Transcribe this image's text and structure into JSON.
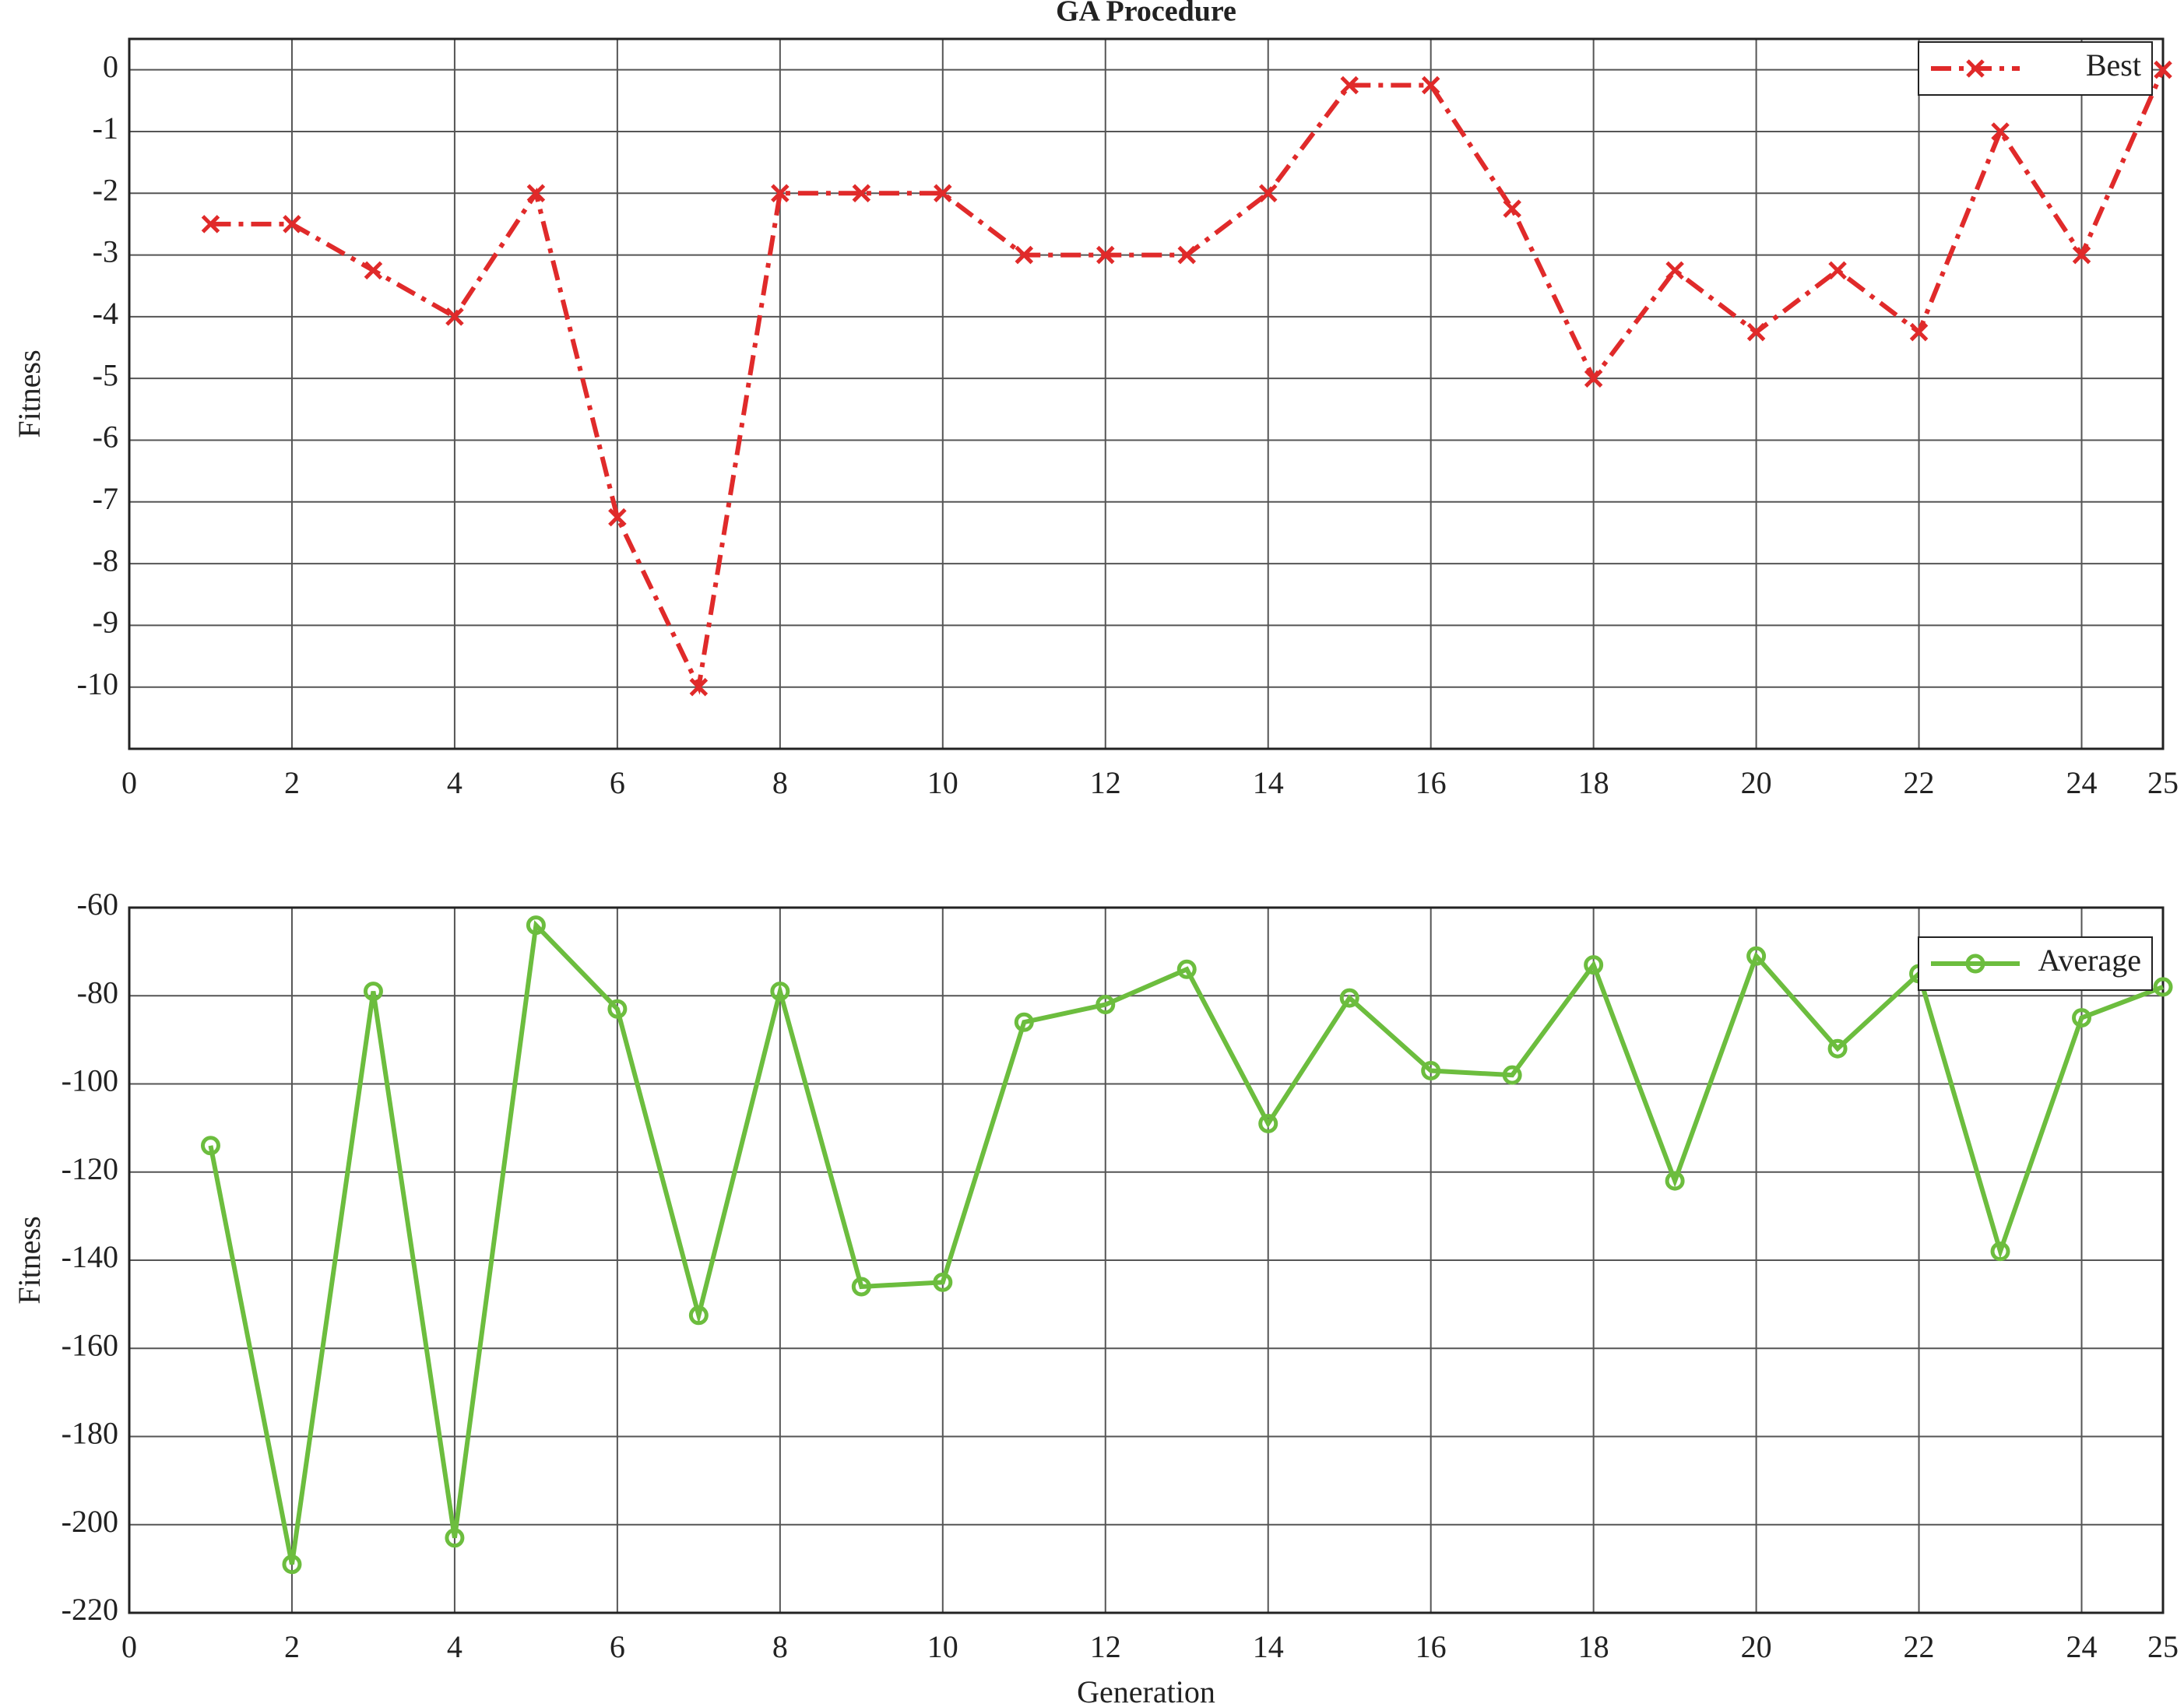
{
  "chart_data": [
    {
      "type": "line",
      "title": "GA Procedure",
      "ylabel": "Fitness",
      "x": [
        1,
        2,
        3,
        4,
        5,
        6,
        7,
        8,
        9,
        10,
        11,
        12,
        13,
        14,
        15,
        16,
        17,
        18,
        19,
        20,
        21,
        22,
        23,
        24,
        25
      ],
      "series": [
        {
          "name": "Best",
          "color": "#e02a2a",
          "linestyle": "dashdot",
          "marker": "x",
          "values": [
            -2.5,
            -2.5,
            -3.25,
            -4,
            -2,
            -7.25,
            -10,
            -2,
            -2,
            -2,
            -3,
            -3,
            -3,
            -2,
            -0.25,
            -0.25,
            -2.25,
            -5,
            -3.25,
            -4.25,
            -3.25,
            -4.25,
            -1,
            -3,
            0
          ]
        }
      ],
      "xlim": [
        0,
        25
      ],
      "xticks": [
        0,
        2,
        4,
        6,
        8,
        10,
        12,
        14,
        16,
        18,
        20,
        22,
        24,
        25
      ],
      "ylim": [
        -11,
        0.5
      ],
      "yticks": [
        -10,
        -9,
        -8,
        -7,
        -6,
        -5,
        -4,
        -3,
        -2,
        -1,
        0
      ],
      "grid": true,
      "legend": "upper right"
    },
    {
      "type": "line",
      "xlabel": "Generation",
      "ylabel": "Fitness",
      "x": [
        1,
        2,
        3,
        4,
        5,
        6,
        7,
        8,
        9,
        10,
        11,
        12,
        13,
        14,
        15,
        16,
        17,
        18,
        19,
        20,
        21,
        22,
        23,
        24,
        25
      ],
      "series": [
        {
          "name": "Average",
          "color": "#6cbd3e",
          "linestyle": "solid",
          "marker": "o",
          "values": [
            -114,
            -209,
            -79,
            -203,
            -64,
            -83,
            -152.5,
            -79,
            -146,
            -145,
            -86,
            -82,
            -74,
            -109,
            -80.5,
            -97,
            -98,
            -73,
            -122,
            -71,
            -92,
            -75,
            -138,
            -85,
            -78
          ]
        }
      ],
      "xlim": [
        0,
        25
      ],
      "xticks": [
        0,
        2,
        4,
        6,
        8,
        10,
        12,
        14,
        16,
        18,
        20,
        22,
        24,
        25
      ],
      "ylim": [
        -220,
        -60
      ],
      "yticks": [
        -220,
        -200,
        -180,
        -160,
        -140,
        -120,
        -100,
        -80,
        -60
      ],
      "grid": true,
      "legend": "upper right"
    }
  ]
}
